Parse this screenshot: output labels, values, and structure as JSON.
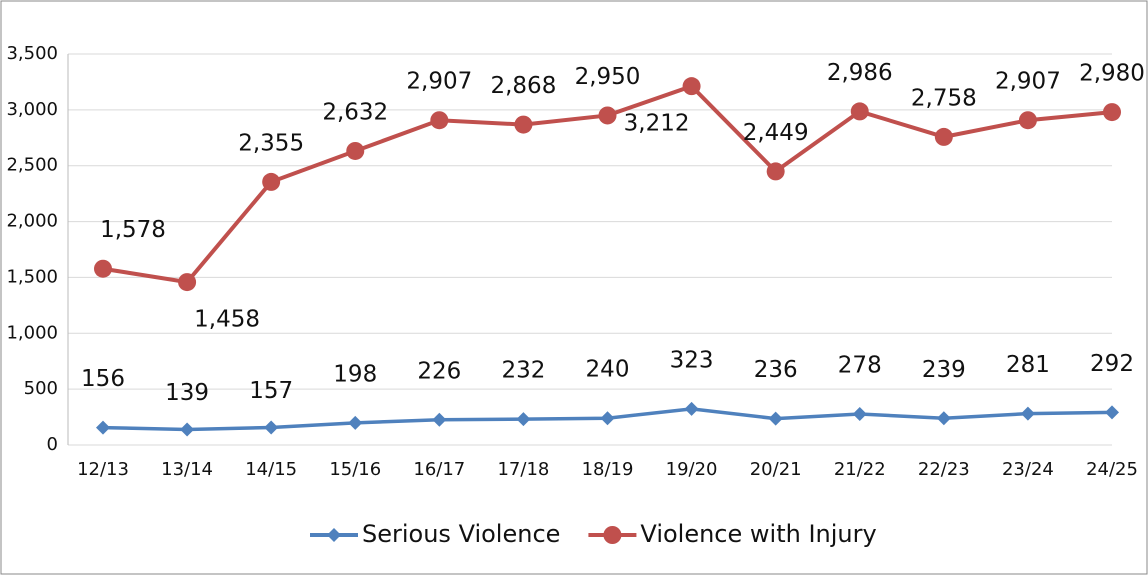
{
  "chart_data": {
    "type": "line",
    "categories": [
      "12/13",
      "13/14",
      "14/15",
      "15/16",
      "16/17",
      "17/18",
      "18/19",
      "19/20",
      "20/21",
      "21/22",
      "22/23",
      "23/24",
      "24/25"
    ],
    "series": [
      {
        "name": "Serious Violence",
        "color": "#4f81bd",
        "marker": "diamond",
        "values": [
          156,
          139,
          157,
          198,
          226,
          232,
          240,
          323,
          236,
          278,
          239,
          281,
          292
        ]
      },
      {
        "name": "Violence with Injury",
        "color": "#c0504d",
        "marker": "circle",
        "values": [
          1578,
          1458,
          2355,
          2632,
          2907,
          2868,
          2950,
          3212,
          2449,
          2986,
          2758,
          2907,
          2980
        ],
        "value_labels": [
          "1,578",
          "1,458",
          "2,355",
          "2,632",
          "2,907",
          "2,868",
          "2,950",
          "3,212",
          "2,449",
          "2,986",
          "2,758",
          "2,907",
          "2,980"
        ]
      }
    ],
    "ylim": [
      0,
      3500
    ],
    "yticks": [
      0,
      500,
      {
        "value": 1000,
        "label": "1,000"
      },
      {
        "value": 1500,
        "label": "1,500"
      },
      {
        "value": 2000,
        "label": "2,000"
      },
      {
        "value": 2500,
        "label": "2,500"
      },
      {
        "value": 3000,
        "label": "3,000"
      },
      {
        "value": 3500,
        "label": "3,500"
      }
    ],
    "grid": true,
    "legend": "bottom"
  }
}
